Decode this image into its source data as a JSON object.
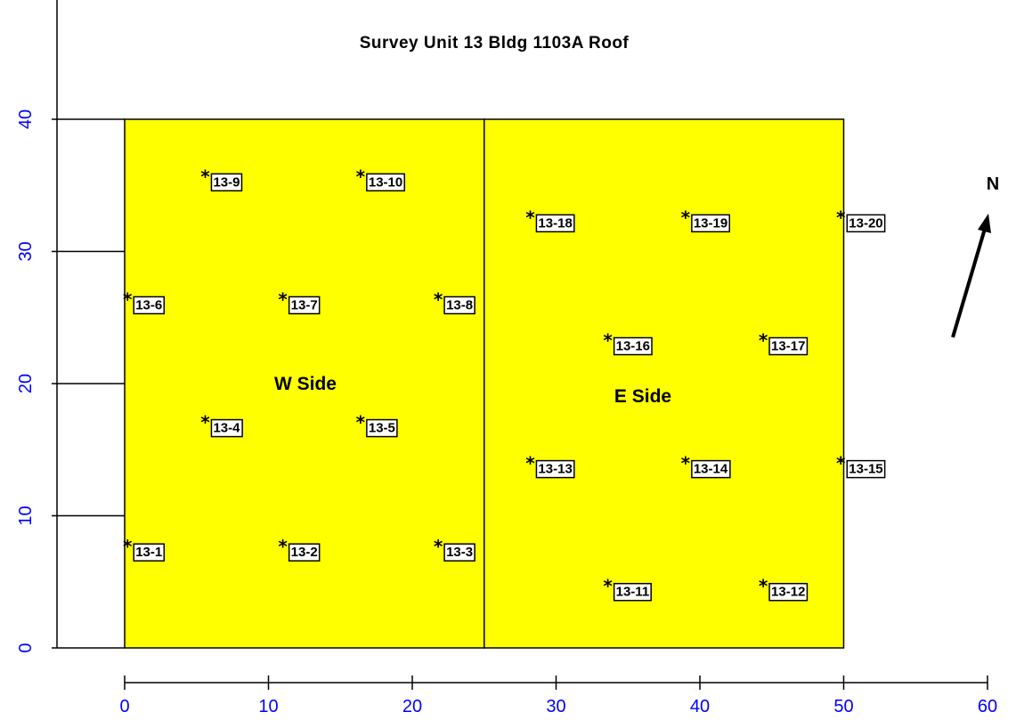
{
  "chart_data": {
    "type": "scatter",
    "title": "Survey Unit 13 Bldg 1103A Roof",
    "xlabel": "",
    "ylabel": "",
    "xlim": [
      0,
      60
    ],
    "ylim": [
      0,
      40
    ],
    "xticks": [
      0,
      10,
      20,
      30,
      40,
      50,
      60
    ],
    "yticks": [
      0,
      10,
      20,
      30,
      40
    ],
    "grid": false,
    "legend": "none",
    "regions": [
      {
        "name": "W Side",
        "x": [
          0,
          25
        ],
        "y": [
          0,
          40
        ]
      },
      {
        "name": "E Side",
        "x": [
          25,
          50
        ],
        "y": [
          0,
          40
        ]
      }
    ],
    "points": [
      {
        "label": "13-1",
        "x": 0.2,
        "y": 7.8
      },
      {
        "label": "13-2",
        "x": 11.0,
        "y": 7.8
      },
      {
        "label": "13-3",
        "x": 21.8,
        "y": 7.8
      },
      {
        "label": "13-4",
        "x": 5.6,
        "y": 17.2
      },
      {
        "label": "13-5",
        "x": 16.4,
        "y": 17.2
      },
      {
        "label": "13-6",
        "x": 0.2,
        "y": 26.5
      },
      {
        "label": "13-7",
        "x": 11.0,
        "y": 26.5
      },
      {
        "label": "13-8",
        "x": 21.8,
        "y": 26.5
      },
      {
        "label": "13-9",
        "x": 5.6,
        "y": 35.8
      },
      {
        "label": "13-10",
        "x": 16.4,
        "y": 35.8
      },
      {
        "label": "13-11",
        "x": 33.6,
        "y": 4.8
      },
      {
        "label": "13-12",
        "x": 44.4,
        "y": 4.8
      },
      {
        "label": "13-13",
        "x": 28.2,
        "y": 14.1
      },
      {
        "label": "13-14",
        "x": 39.0,
        "y": 14.1
      },
      {
        "label": "13-15",
        "x": 49.8,
        "y": 14.1
      },
      {
        "label": "13-16",
        "x": 33.6,
        "y": 23.4
      },
      {
        "label": "13-17",
        "x": 44.4,
        "y": 23.4
      },
      {
        "label": "13-18",
        "x": 28.2,
        "y": 32.7
      },
      {
        "label": "13-19",
        "x": 39.0,
        "y": 32.7
      },
      {
        "label": "13-20",
        "x": 49.8,
        "y": 32.7
      }
    ],
    "north_arrow": "N"
  },
  "colors": {
    "region_fill": "#ffff00",
    "axis_tick_text": "#0000ff",
    "line": "#000000",
    "label_box": "#ffffff"
  }
}
